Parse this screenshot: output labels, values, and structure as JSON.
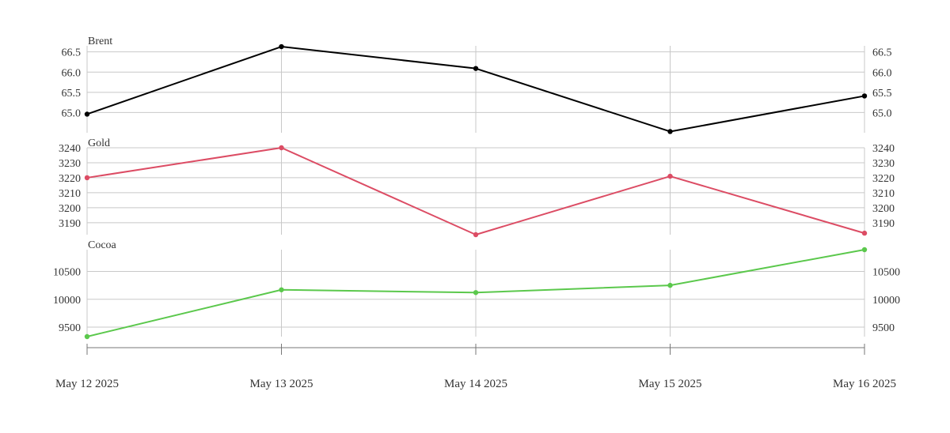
{
  "chart_data": {
    "type": "line",
    "x": [
      "May 12 2025",
      "May 13 2025",
      "May 14 2025",
      "May 15 2025",
      "May 16 2025"
    ],
    "grid": true,
    "panels": [
      {
        "title": "Brent",
        "color": "#000000",
        "values": [
          64.96,
          66.63,
          66.09,
          64.53,
          65.41
        ],
        "ylim": [
          64.5,
          66.65
        ],
        "ticks": [
          65.0,
          65.5,
          66.0,
          66.5
        ],
        "tick_labels": [
          "65.0",
          "65.5",
          "66.0",
          "66.5"
        ]
      },
      {
        "title": "Gold",
        "color": "#dc4c64",
        "values": [
          3220,
          3240,
          3182,
          3221,
          3183
        ],
        "ylim": [
          3182,
          3240
        ],
        "ticks": [
          3190,
          3200,
          3210,
          3220,
          3230,
          3240
        ],
        "tick_labels": [
          "3190",
          "3200",
          "3210",
          "3220",
          "3230",
          "3240"
        ]
      },
      {
        "title": "Cocoa",
        "color": "#5bc84c",
        "values": [
          9330,
          10170,
          10120,
          10250,
          10890
        ],
        "ylim": [
          9330,
          10890
        ],
        "ticks": [
          9500,
          10000,
          10500
        ],
        "tick_labels": [
          "9500",
          "10000",
          "10500"
        ]
      }
    ]
  }
}
